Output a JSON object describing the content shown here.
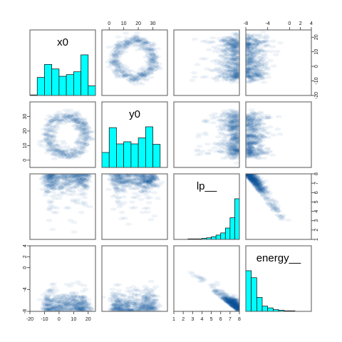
{
  "chart_data": {
    "type": "scatter",
    "subtype": "pairs-matrix",
    "variables": [
      "x0",
      "y0",
      "lp__",
      "energy__"
    ],
    "diagonal": "histogram",
    "off_diagonal": "smoothed-density-scatter",
    "colors": {
      "hist_fill": "#00ffff",
      "hist_edge": "#000000",
      "density": "#08519c",
      "frame": "#555555"
    },
    "axes": {
      "x0": {
        "range": [
          -20,
          25
        ],
        "ticks": [
          -20,
          -10,
          0,
          10,
          20
        ],
        "tick_labels": [
          "-20",
          "-10",
          "0",
          "10",
          "20"
        ]
      },
      "y0": {
        "range": [
          -5,
          40
        ],
        "ticks": [
          0,
          10,
          20,
          30
        ],
        "tick_labels": [
          "0",
          "10",
          "20",
          "30"
        ]
      },
      "lp__": {
        "range": [
          1,
          8
        ],
        "ticks": [
          1,
          2,
          3,
          4,
          5,
          6,
          7,
          8
        ],
        "tick_labels": [
          "1",
          "2",
          "3",
          "4",
          "5",
          "6",
          "7",
          "8"
        ]
      },
      "energy__": {
        "range": [
          -8,
          4
        ],
        "ticks": [
          -8,
          -4,
          0,
          2,
          4
        ],
        "tick_labels": [
          "-8",
          "-4",
          "0",
          "2",
          "4"
        ]
      }
    },
    "histograms": {
      "x0": {
        "bin_edges": [
          -20,
          -15,
          -10,
          -5,
          0,
          5,
          10,
          15,
          20,
          25
        ],
        "counts": [
          1,
          32,
          55,
          47,
          34,
          37,
          42,
          72,
          17
        ]
      },
      "y0": {
        "bin_edges": [
          -5,
          0,
          5,
          10,
          15,
          20,
          25,
          30,
          35
        ],
        "counts": [
          35,
          93,
          55,
          60,
          55,
          69,
          95,
          54
        ]
      },
      "lp__": {
        "bin_edges": [
          1,
          1.5,
          2,
          2.5,
          3,
          3.5,
          4,
          4.5,
          5,
          5.5,
          6,
          6.5,
          7,
          7.5,
          8
        ],
        "counts": [
          0,
          0,
          0,
          1,
          1,
          1,
          2,
          3,
          5,
          8,
          12,
          21,
          40,
          75
        ]
      },
      "energy__": {
        "bin_edges": [
          -8,
          -7,
          -6,
          -5,
          -4,
          -3,
          -2,
          -1,
          0,
          1,
          2,
          3,
          4
        ],
        "counts": [
          70,
          58,
          24,
          9,
          6,
          3,
          2,
          1,
          1,
          0,
          0,
          0
        ]
      }
    },
    "density_shapes": {
      "x0_vs_y0": "ring centered near (5, 17) with radius about 13",
      "lp__": "increasing toward 8",
      "energy__": "concentrated near -8 to -5"
    },
    "axis_tick_labels_drawn": {
      "top": {
        "column": "y0",
        "labels": [
          "0",
          "10",
          "20",
          "30"
        ]
      },
      "top_right": {
        "column": "energy__",
        "labels": [
          "-8",
          "-4",
          "0",
          "2",
          "4"
        ]
      },
      "left_row2": {
        "row": "y0",
        "labels": [
          "0",
          "10",
          "20",
          "30"
        ]
      },
      "left_row4": {
        "row": "energy__",
        "labels": [
          "-8",
          "-4",
          "0",
          "2",
          "4"
        ]
      },
      "right_row1": {
        "row": "x0",
        "labels": [
          "-20",
          "-10",
          "0",
          "10",
          "20"
        ]
      },
      "right_row3": {
        "row": "lp__",
        "labels": [
          "1",
          "2",
          "3",
          "4",
          "5",
          "6",
          "7",
          "8"
        ]
      },
      "bottom_col1": {
        "column": "x0",
        "labels": [
          "-20",
          "-10",
          "0",
          "10",
          "20"
        ]
      },
      "bottom_col3": {
        "column": "lp__",
        "labels": [
          "1",
          "2",
          "3",
          "4",
          "5",
          "6",
          "7",
          "8"
        ]
      }
    }
  }
}
